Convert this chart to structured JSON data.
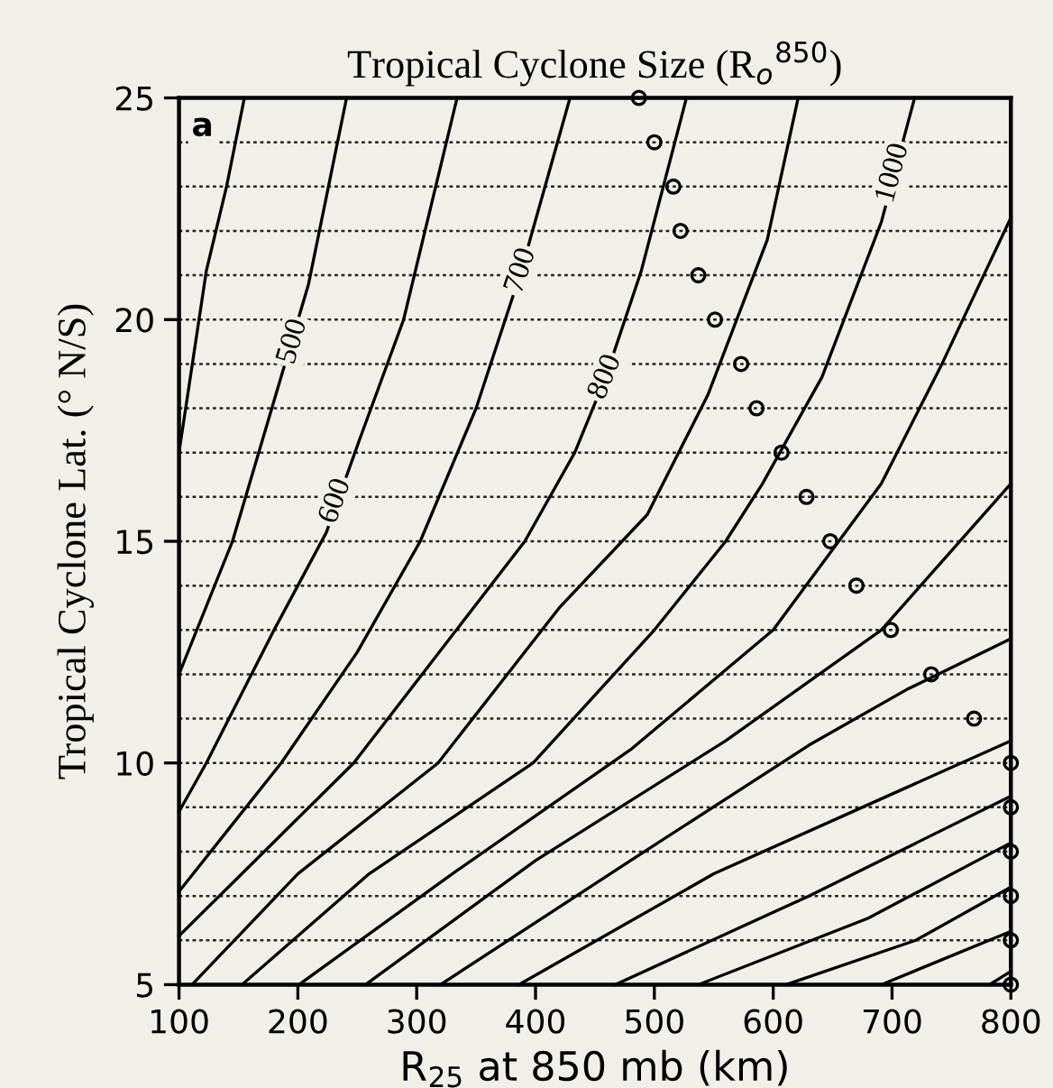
{
  "chart_data": {
    "type": "line",
    "title": "Tropical Cyclone Size (R$_{o}$$^{850}$)",
    "xlabel": "R$_{25}$ at 850 mb (km)",
    "ylabel": "Tropical Cyclone Lat. (° N/S)",
    "xlim": [
      100,
      800
    ],
    "ylim": [
      5,
      25
    ],
    "xticks": [
      100,
      200,
      300,
      400,
      500,
      600,
      700,
      800
    ],
    "yticks": [
      5,
      {
        "value": 6,
        "label": null
      },
      {
        "value": 7,
        "label": null
      },
      {
        "value": 8,
        "label": null
      },
      {
        "value": 9,
        "label": null
      },
      10,
      {
        "value": 11,
        "label": null
      },
      {
        "value": 12,
        "label": null
      },
      {
        "value": 13,
        "label": null
      },
      {
        "value": 14,
        "label": null
      },
      15,
      {
        "value": 16,
        "label": null
      },
      {
        "value": 17,
        "label": null
      },
      {
        "value": 18,
        "label": null
      },
      {
        "value": 19,
        "label": null
      },
      20,
      {
        "value": 21,
        "label": null
      },
      {
        "value": 22,
        "label": null
      },
      {
        "value": 23,
        "label": null
      },
      {
        "value": 24,
        "label": null
      },
      25
    ],
    "grid": "y",
    "line_style": "solid",
    "marker": "none",
    "series": [
      {
        "type": "line",
        "color": "#000000",
        "x": [
          100,
          123,
          140,
          155
        ],
        "values": [
          17.0,
          21.1,
          23,
          25
        ]
      },
      {
        "type": "line",
        "color": "#000000",
        "x": [
          100,
          145,
          209,
          241
        ],
        "values": [
          12.0,
          15,
          20.8,
          25
        ]
      },
      {
        "type": "line",
        "color": "#000000",
        "x": [
          100,
          123,
          180,
          224,
          252,
          289,
          334
        ],
        "values": [
          8.9,
          10,
          13,
          15.2,
          17.3,
          20,
          25
        ]
      },
      {
        "type": "line",
        "color": "#000000",
        "x": [
          100,
          186,
          250,
          303,
          350,
          388,
          429
        ],
        "values": [
          7.1,
          10,
          12.5,
          15,
          18,
          21.1,
          25
        ]
      },
      {
        "type": "line",
        "color": "#000000",
        "x": [
          100,
          247,
          391,
          433,
          459,
          489,
          527
        ],
        "values": [
          6.1,
          10,
          15,
          17,
          18.7,
          21.1,
          25
        ]
      },
      {
        "type": "line",
        "color": "#000000",
        "x": [
          111,
          200,
          318,
          420,
          494,
          545,
          595,
          621
        ],
        "values": [
          5,
          7.5,
          10,
          13.5,
          15.6,
          18.3,
          21.8,
          25
        ]
      },
      {
        "type": "line",
        "color": "#000000",
        "x": [
          153,
          260,
          398,
          500,
          560,
          591,
          641,
          691,
          719
        ],
        "values": [
          5,
          7.5,
          10,
          13,
          15,
          16.3,
          18.7,
          22.2,
          25
        ]
      },
      {
        "type": "line",
        "color": "#000000",
        "x": [
          201,
          330,
          480,
          600,
          691,
          742,
          800
        ],
        "values": [
          5,
          7.5,
          10.3,
          13,
          16.3,
          19,
          22.3
        ]
      },
      {
        "type": "line",
        "color": "#000000",
        "x": [
          257,
          400,
          560,
          691,
          800
        ],
        "values": [
          5,
          7.8,
          10.5,
          13,
          16.3
        ]
      },
      {
        "type": "line",
        "color": "#000000",
        "x": [
          320,
          480,
          630,
          712,
          800
        ],
        "values": [
          5,
          7.8,
          10.4,
          11.65,
          12.8
        ]
      },
      {
        "type": "line",
        "color": "#000000",
        "x": [
          386,
          550,
          700,
          800
        ],
        "values": [
          5,
          7.5,
          9.3,
          10.5
        ]
      },
      {
        "type": "line",
        "color": "#000000",
        "x": [
          467,
          630,
          800
        ],
        "values": [
          5,
          7,
          9.25
        ]
      },
      {
        "type": "line",
        "color": "#000000",
        "x": [
          537,
          680,
          800
        ],
        "values": [
          5,
          6.5,
          8.2
        ]
      },
      {
        "type": "line",
        "color": "#000000",
        "x": [
          611,
          720,
          800
        ],
        "values": [
          5,
          6,
          7.2
        ]
      },
      {
        "type": "line",
        "color": "#000000",
        "x": [
          691,
          800
        ],
        "values": [
          5,
          6.2
        ]
      },
      {
        "type": "line",
        "color": "#000000",
        "x": [
          782,
          800
        ],
        "values": [
          5,
          5.3
        ]
      },
      {
        "type": "scatter",
        "color": "#000000",
        "marker": "circle",
        "x": [
          487,
          500,
          516,
          522,
          537,
          551,
          573,
          586,
          607,
          628,
          648,
          670,
          699,
          733,
          769,
          800,
          800,
          800,
          800,
          800,
          800
        ],
        "values": [
          25,
          24,
          23,
          22,
          21,
          20,
          19,
          18,
          17,
          16,
          15,
          14,
          13,
          12,
          11,
          10,
          9,
          8,
          7,
          6,
          5
        ]
      }
    ],
    "annotations": [
      "a",
      {
        "text": "500",
        "x": 196,
        "y": 19.5
      },
      {
        "text": "600",
        "x": 232,
        "y": 15.9
      },
      {
        "text": "700",
        "x": 388,
        "y": 21.1
      },
      {
        "text": "800",
        "x": 459,
        "y": 18.7
      },
      {
        "text": "1000",
        "x": 701,
        "y": 23.3
      }
    ]
  }
}
